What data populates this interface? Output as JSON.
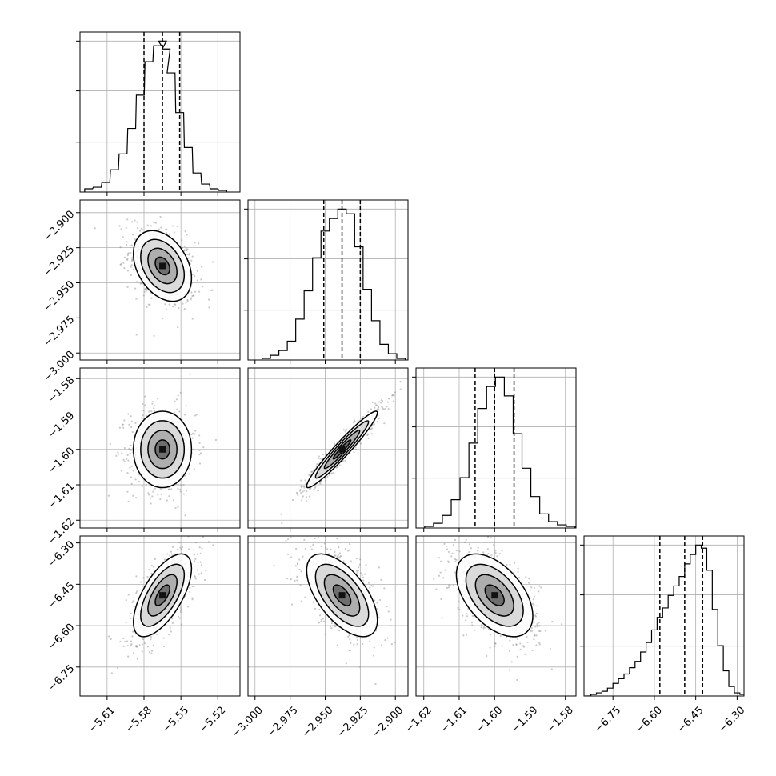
{
  "chart_data": {
    "type": "corner",
    "grid": true,
    "parameters": [
      {
        "range": [
          -5.632,
          -5.502
        ],
        "ticks": [
          -5.61,
          -5.58,
          -5.55,
          -5.52
        ],
        "tick_labels": [
          "−5.61",
          "−5.58",
          "−5.55",
          "−5.52"
        ],
        "quantiles": [
          -5.58,
          -5.565,
          -5.551
        ],
        "histogram_x": [
          -5.625,
          -5.618,
          -5.611,
          -5.604,
          -5.597,
          -5.59,
          -5.583,
          -5.576,
          -5.569,
          -5.565,
          -5.562,
          -5.558,
          -5.551,
          -5.544,
          -5.537,
          -5.53,
          -5.523,
          -5.516
        ],
        "histogram_counts": [
          2,
          3,
          6,
          14,
          24,
          40,
          61,
          82,
          92,
          95,
          90,
          75,
          50,
          28,
          12,
          5,
          2,
          1
        ]
      },
      {
        "range": [
          -3.005,
          -2.891
        ],
        "ticks": [
          -3.0,
          -2.975,
          -2.95,
          -2.925,
          -2.9
        ],
        "tick_labels": [
          "−3.000",
          "−2.975",
          "−2.950",
          "−2.925",
          "−2.900"
        ],
        "quantiles": [
          -2.951,
          -2.938,
          -2.925
        ],
        "histogram_x": [
          -2.992,
          -2.986,
          -2.98,
          -2.974,
          -2.968,
          -2.962,
          -2.956,
          -2.95,
          -2.944,
          -2.938,
          -2.932,
          -2.926,
          -2.92,
          -2.914,
          -2.908,
          -2.902,
          -2.896
        ],
        "histogram_counts": [
          1,
          3,
          6,
          12,
          26,
          44,
          65,
          82,
          90,
          96,
          93,
          72,
          45,
          25,
          10,
          4,
          1
        ]
      },
      {
        "range": [
          -1.6222,
          -1.577
        ],
        "ticks": [
          -1.62,
          -1.61,
          -1.6,
          -1.59,
          -1.58
        ],
        "tick_labels": [
          "−1.62",
          "−1.61",
          "−1.60",
          "−1.59",
          "−1.58"
        ],
        "quantiles": [
          -1.6055,
          -1.6,
          -1.5945
        ],
        "histogram_x": [
          -1.6185,
          -1.616,
          -1.6135,
          -1.611,
          -1.6085,
          -1.606,
          -1.6035,
          -1.601,
          -1.5985,
          -1.596,
          -1.5935,
          -1.591,
          -1.5885,
          -1.586,
          -1.5835,
          -1.581,
          -1.5785
        ],
        "histogram_counts": [
          1,
          3,
          8,
          18,
          32,
          54,
          76,
          90,
          96,
          84,
          60,
          38,
          20,
          9,
          4,
          2,
          1
        ]
      },
      {
        "range": [
          -6.855,
          -6.275
        ],
        "ticks": [
          -6.75,
          -6.6,
          -6.45,
          -6.3
        ],
        "tick_labels": [
          "−6.75",
          "−6.60",
          "−6.45",
          "−6.30"
        ],
        "quantiles": [
          -6.58,
          -6.49,
          -6.425
        ],
        "histogram_x": [
          -6.84,
          -6.82,
          -6.8,
          -6.78,
          -6.76,
          -6.74,
          -6.72,
          -6.7,
          -6.68,
          -6.66,
          -6.64,
          -6.62,
          -6.6,
          -6.58,
          -6.56,
          -6.54,
          -6.52,
          -6.5,
          -6.48,
          -6.46,
          -6.44,
          -6.42,
          -6.4,
          -6.38,
          -6.36,
          -6.34,
          -6.32,
          -6.3,
          -6.28
        ],
        "histogram_counts": [
          0,
          1,
          2,
          3,
          5,
          8,
          11,
          14,
          18,
          22,
          28,
          34,
          42,
          50,
          56,
          64,
          70,
          76,
          84,
          90,
          96,
          94,
          80,
          55,
          32,
          16,
          6,
          2,
          1
        ]
      }
    ],
    "pairs": [
      {
        "x_param": 0,
        "y_param": 1,
        "center": [
          -5.565,
          -2.938
        ],
        "sigma": [
          0.0118,
          0.0126
        ],
        "correlation": -0.35
      },
      {
        "x_param": 0,
        "y_param": 2,
        "center": [
          -5.565,
          -1.6
        ],
        "sigma": [
          0.0118,
          0.0054
        ],
        "correlation": 0.0
      },
      {
        "x_param": 1,
        "y_param": 2,
        "center": [
          -2.938,
          -1.6
        ],
        "sigma": [
          0.0126,
          0.0054
        ],
        "correlation": 0.96
      },
      {
        "x_param": 0,
        "y_param": 3,
        "center": [
          -5.565,
          -6.49
        ],
        "sigma": [
          0.0118,
          0.075
        ],
        "correlation": 0.65
      },
      {
        "x_param": 1,
        "y_param": 3,
        "center": [
          -2.938,
          -6.49
        ],
        "sigma": [
          0.0126,
          0.075
        ],
        "correlation": -0.6
      },
      {
        "x_param": 2,
        "y_param": 3,
        "center": [
          -1.6,
          -6.49
        ],
        "sigma": [
          0.0054,
          0.075
        ],
        "correlation": -0.5
      }
    ]
  }
}
